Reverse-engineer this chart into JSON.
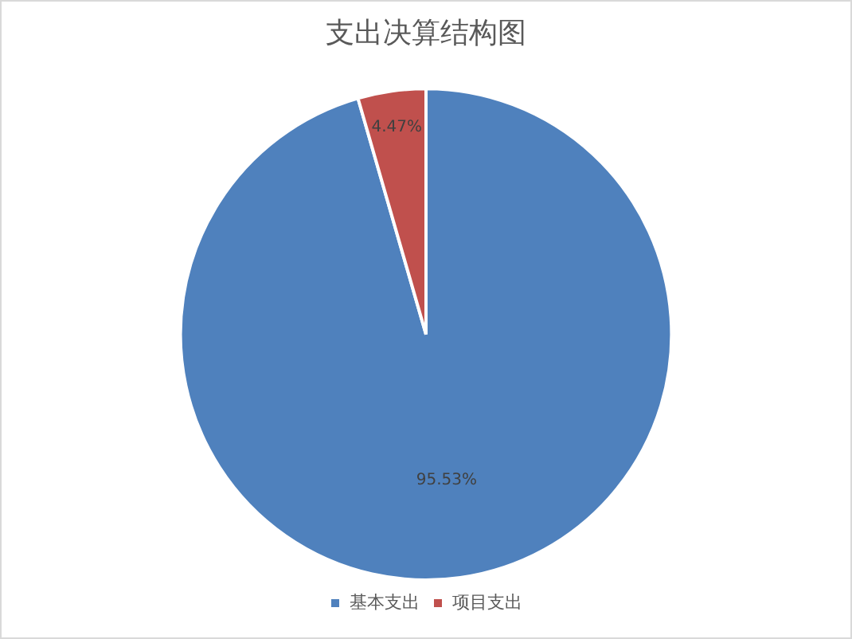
{
  "chart_data": {
    "type": "pie",
    "title": "支出决算结构图",
    "categories": [
      "基本支出",
      "项目支出"
    ],
    "values": [
      95.53,
      4.47
    ],
    "colors": [
      "#4f81bd",
      "#c0504d"
    ],
    "value_labels": [
      "95.53%",
      "4.47%"
    ],
    "legend": "bottom"
  }
}
